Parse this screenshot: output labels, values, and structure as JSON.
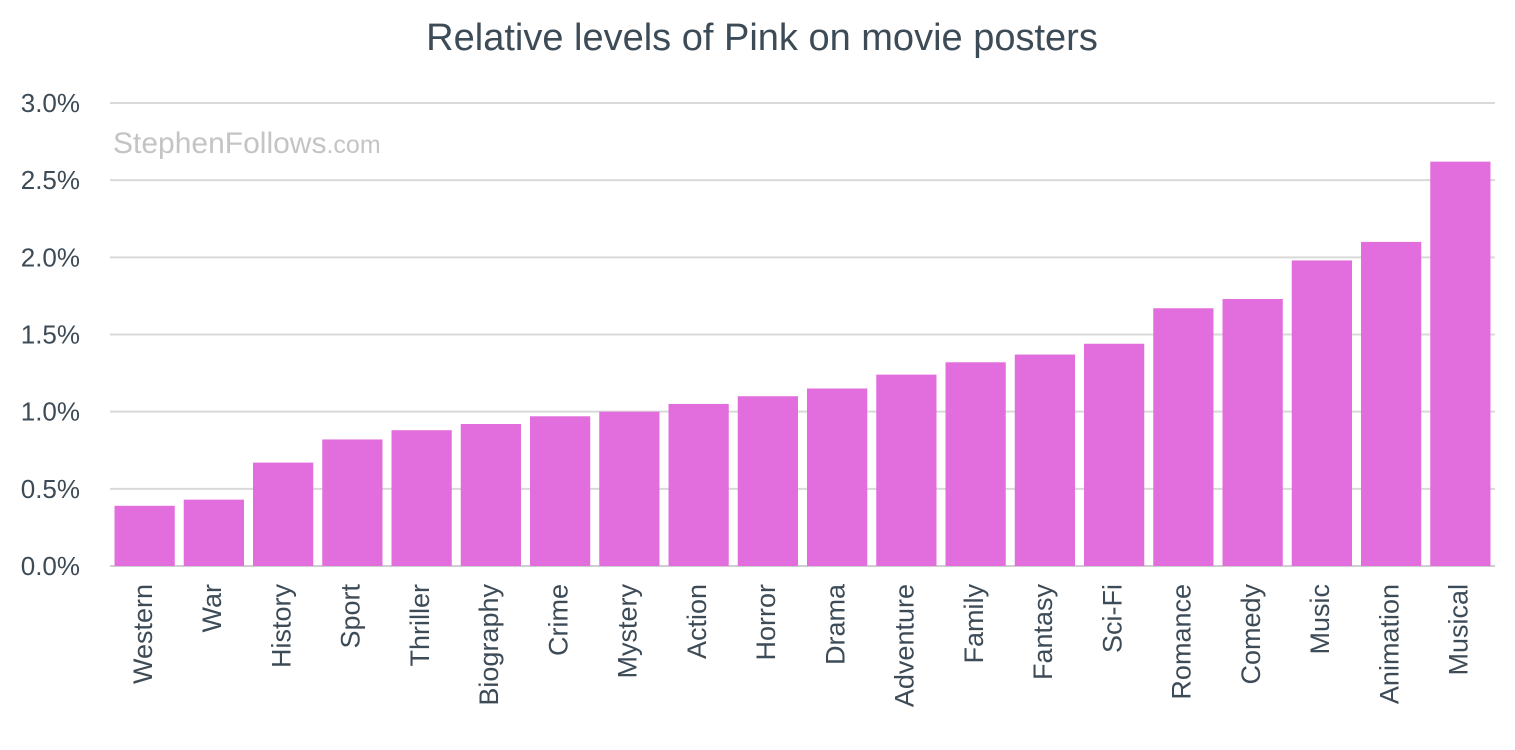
{
  "chart_data": {
    "type": "bar",
    "title": "Relative levels of Pink on movie posters",
    "xlabel": "",
    "ylabel": "",
    "ylim": [
      0,
      3.0
    ],
    "y_ticks": [
      "0.0%",
      "0.5%",
      "1.0%",
      "1.5%",
      "2.0%",
      "2.5%",
      "3.0%"
    ],
    "y_unit": "%",
    "grid": true,
    "legend": "none",
    "bar_color": "#e26ddc",
    "watermark": {
      "main": "StephenFollows",
      "suffix": ".com"
    },
    "categories": [
      "Western",
      "War",
      "History",
      "Sport",
      "Thriller",
      "Biography",
      "Crime",
      "Mystery",
      "Action",
      "Horror",
      "Drama",
      "Adventure",
      "Family",
      "Fantasy",
      "Sci-Fi",
      "Romance",
      "Comedy",
      "Music",
      "Animation",
      "Musical"
    ],
    "values": [
      0.39,
      0.43,
      0.67,
      0.82,
      0.88,
      0.92,
      0.97,
      1.0,
      1.05,
      1.1,
      1.15,
      1.24,
      1.32,
      1.37,
      1.44,
      1.67,
      1.73,
      1.98,
      2.1,
      2.62
    ]
  }
}
